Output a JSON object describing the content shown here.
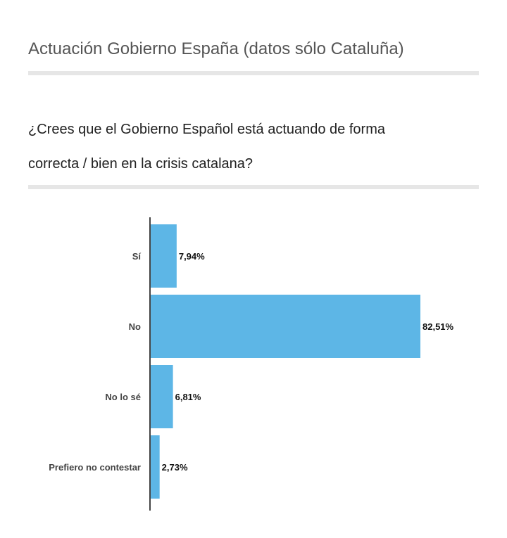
{
  "header": {
    "title": "Actuación Gobierno España (datos sólo Cataluña)"
  },
  "question": {
    "line1": "¿Crees que el Gobierno Español está actuando de forma",
    "line2": "correcta / bien en la crisis catalana?"
  },
  "chart_data": {
    "type": "bar",
    "orientation": "horizontal",
    "categories": [
      "Sí",
      "No",
      "No lo sé",
      "Prefiero no contestar"
    ],
    "values": [
      7.94,
      82.51,
      6.81,
      2.73
    ],
    "value_labels": [
      "7,94%",
      "82,51%",
      "6,81%",
      "2,73%"
    ],
    "unit": "%",
    "xlim": [
      0,
      100
    ],
    "grid": false,
    "bar_color": "#5db6e6"
  }
}
